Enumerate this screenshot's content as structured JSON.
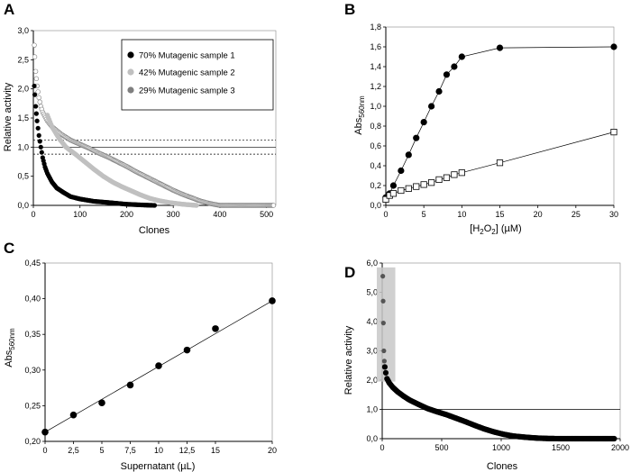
{
  "panels": {
    "A": {
      "letter": "A",
      "chart_data": {
        "type": "scatter",
        "xlabel": "Clones",
        "ylabel": "Relative activity",
        "xlim": [
          0,
          520
        ],
        "ylim": [
          0,
          3.0
        ],
        "x_ticks": [
          "0",
          "100",
          "200",
          "300",
          "400",
          "500"
        ],
        "y_ticks": [
          "0,0",
          "0,5",
          "1,0",
          "1,5",
          "2,0",
          "2,5",
          "3,0"
        ],
        "reference_lines": [
          0.88,
          1.0,
          1.12
        ],
        "legend_position": "top-right",
        "series": [
          {
            "name": "70% Mutagenic sample 1",
            "color": "#000000",
            "marker": "filled-circle",
            "points": [
              [
                2,
                2.05
              ],
              [
                3,
                1.9
              ],
              [
                5,
                1.7
              ],
              [
                8,
                1.45
              ],
              [
                12,
                1.2
              ],
              [
                16,
                1.0
              ],
              [
                20,
                0.82
              ],
              [
                25,
                0.66
              ],
              [
                30,
                0.55
              ],
              [
                40,
                0.4
              ],
              [
                50,
                0.3
              ],
              [
                65,
                0.22
              ],
              [
                80,
                0.15
              ],
              [
                100,
                0.11
              ],
              [
                130,
                0.07
              ],
              [
                160,
                0.05
              ],
              [
                200,
                0.02
              ],
              [
                240,
                0.005
              ],
              [
                260,
                0.0
              ]
            ]
          },
          {
            "name": "42% Mutagenic sample 2",
            "color": "#c0c0c0",
            "marker": "filled-circle",
            "points": [
              [
                30,
                1.55
              ],
              [
                40,
                1.35
              ],
              [
                55,
                1.15
              ],
              [
                70,
                1.0
              ],
              [
                90,
                0.88
              ],
              [
                110,
                0.75
              ],
              [
                130,
                0.62
              ],
              [
                150,
                0.5
              ],
              [
                170,
                0.4
              ],
              [
                190,
                0.32
              ],
              [
                210,
                0.25
              ],
              [
                230,
                0.18
              ],
              [
                250,
                0.12
              ],
              [
                270,
                0.08
              ],
              [
                290,
                0.05
              ],
              [
                320,
                0.02
              ],
              [
                350,
                0.0
              ]
            ]
          },
          {
            "name": "29% Mutagenic sample 3",
            "color": "#7f7f7f",
            "marker": "filled-circle",
            "points": [
              [
                2,
                2.75
              ],
              [
                3,
                2.55
              ],
              [
                5,
                2.3
              ],
              [
                8,
                2.05
              ],
              [
                12,
                1.85
              ],
              [
                16,
                1.7
              ],
              [
                20,
                1.6
              ],
              [
                30,
                1.45
              ],
              [
                40,
                1.35
              ],
              [
                60,
                1.22
              ],
              [
                80,
                1.12
              ],
              [
                100,
                1.05
              ],
              [
                120,
                0.98
              ],
              [
                140,
                0.9
              ],
              [
                160,
                0.83
              ],
              [
                180,
                0.75
              ],
              [
                200,
                0.67
              ],
              [
                220,
                0.58
              ],
              [
                240,
                0.5
              ],
              [
                260,
                0.42
              ],
              [
                280,
                0.34
              ],
              [
                300,
                0.26
              ],
              [
                320,
                0.19
              ],
              [
                340,
                0.13
              ],
              [
                360,
                0.07
              ],
              [
                380,
                0.03
              ],
              [
                400,
                0.0
              ],
              [
                450,
                0.0
              ],
              [
                500,
                0.0
              ],
              [
                515,
                0.0
              ]
            ]
          }
        ]
      }
    },
    "B": {
      "letter": "B",
      "chart_data": {
        "type": "line",
        "xlabel_main": "[H",
        "xlabel_sub1": "2",
        "xlabel_mid": "O",
        "xlabel_sub2": "2",
        "xlabel_end": "] (µM)",
        "ylabel_main": "Abs",
        "ylabel_sub": "560nm",
        "xlim": [
          0,
          30
        ],
        "ylim": [
          0,
          1.8
        ],
        "x_ticks": [
          "0",
          "5",
          "10",
          "15",
          "20",
          "25",
          "30"
        ],
        "y_ticks": [
          "0,0",
          "0,2",
          "0,4",
          "0,6",
          "0,8",
          "1,0",
          "1,2",
          "1,4",
          "1,6",
          "1,8"
        ],
        "series": [
          {
            "marker": "filled-circle",
            "color": "#000000",
            "points": [
              [
                0,
                0.08
              ],
              [
                0.5,
                0.12
              ],
              [
                1,
                0.2
              ],
              [
                2,
                0.35
              ],
              [
                3,
                0.51
              ],
              [
                4,
                0.68
              ],
              [
                5,
                0.84
              ],
              [
                6,
                1.0
              ],
              [
                7,
                1.15
              ],
              [
                8,
                1.32
              ],
              [
                9,
                1.4
              ],
              [
                10,
                1.5
              ],
              [
                15,
                1.59
              ],
              [
                30,
                1.6
              ]
            ]
          },
          {
            "marker": "open-square",
            "color": "#000000",
            "points": [
              [
                0,
                0.06
              ],
              [
                0.5,
                0.1
              ],
              [
                1,
                0.12
              ],
              [
                2,
                0.15
              ],
              [
                3,
                0.17
              ],
              [
                4,
                0.19
              ],
              [
                5,
                0.21
              ],
              [
                6,
                0.23
              ],
              [
                7,
                0.26
              ],
              [
                8,
                0.28
              ],
              [
                9,
                0.31
              ],
              [
                10,
                0.33
              ],
              [
                15,
                0.43
              ],
              [
                30,
                0.74
              ]
            ]
          }
        ]
      }
    },
    "C": {
      "letter": "C",
      "chart_data": {
        "type": "scatter",
        "xlabel": "Supernatant (µL)",
        "ylabel_main": "Abs",
        "ylabel_sub": "560nm",
        "xlim": [
          0,
          20
        ],
        "ylim": [
          0.2,
          0.45
        ],
        "x_ticks": [
          "0",
          "2,5",
          "5",
          "7,5",
          "10",
          "12,5",
          "15",
          "20"
        ],
        "x_tick_values": [
          0,
          2.5,
          5,
          7.5,
          10,
          12.5,
          15,
          20
        ],
        "y_ticks": [
          "0,20",
          "0,25",
          "0,30",
          "0,35",
          "0,40",
          "0,45"
        ],
        "fit_line": [
          [
            0,
            0.213
          ],
          [
            20,
            0.397
          ]
        ],
        "points": [
          [
            0,
            0.213
          ],
          [
            2.5,
            0.237
          ],
          [
            5,
            0.254
          ],
          [
            7.5,
            0.279
          ],
          [
            10,
            0.306
          ],
          [
            12.5,
            0.328
          ],
          [
            15,
            0.358
          ],
          [
            20,
            0.397
          ]
        ]
      }
    },
    "D": {
      "letter": "D",
      "chart_data": {
        "type": "scatter",
        "xlabel": "Clones",
        "ylabel": "Relative activity",
        "xlim": [
          0,
          2000
        ],
        "ylim": [
          0,
          6.0
        ],
        "x_ticks": [
          "0",
          "500",
          "1000",
          "1500",
          "2000"
        ],
        "y_ticks": [
          "0,0",
          "1,0",
          "2,0",
          "3,0",
          "4,0",
          "5,0",
          "6,0"
        ],
        "reference_line": 1.0,
        "highlight_box": {
          "x": [
            0,
            110
          ],
          "y": [
            1.95,
            5.85
          ]
        },
        "points": [
          [
            5,
            5.55
          ],
          [
            8,
            4.7
          ],
          [
            10,
            3.95
          ],
          [
            14,
            3.0
          ],
          [
            18,
            2.65
          ],
          [
            22,
            2.45
          ],
          [
            30,
            2.25
          ],
          [
            40,
            2.05
          ],
          [
            60,
            1.9
          ],
          [
            90,
            1.75
          ],
          [
            130,
            1.6
          ],
          [
            180,
            1.45
          ],
          [
            230,
            1.32
          ],
          [
            300,
            1.18
          ],
          [
            380,
            1.03
          ],
          [
            460,
            0.92
          ],
          [
            540,
            0.82
          ],
          [
            620,
            0.7
          ],
          [
            700,
            0.58
          ],
          [
            780,
            0.45
          ],
          [
            860,
            0.33
          ],
          [
            940,
            0.23
          ],
          [
            1020,
            0.15
          ],
          [
            1100,
            0.09
          ],
          [
            1200,
            0.05
          ],
          [
            1300,
            0.02
          ],
          [
            1400,
            0.005
          ],
          [
            1500,
            0.0
          ],
          [
            1650,
            0.0
          ],
          [
            1800,
            0.0
          ],
          [
            1950,
            0.0
          ]
        ]
      }
    }
  }
}
